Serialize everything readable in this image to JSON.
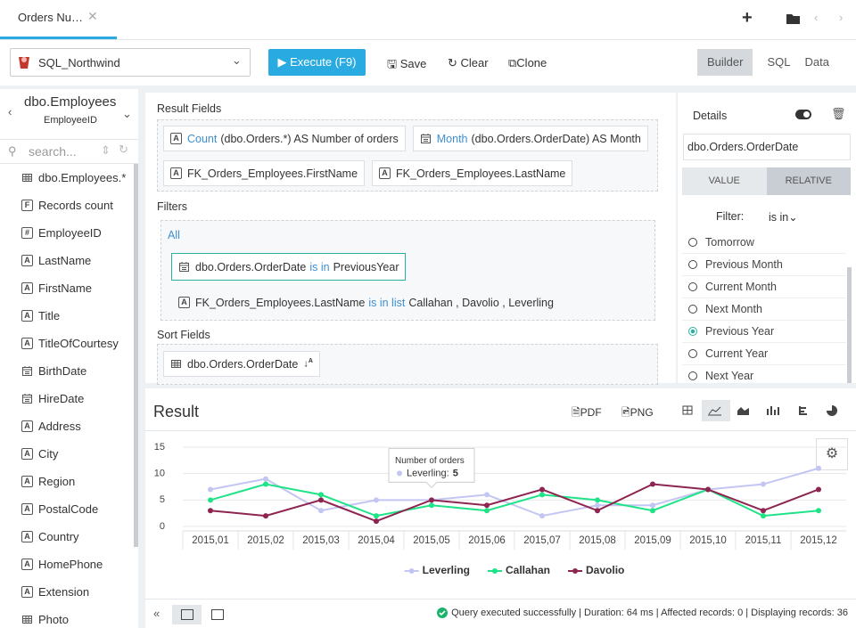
{
  "tab": {
    "title": "Orders Nu…"
  },
  "toolbar": {
    "connection": "SQL_Northwind",
    "execute": "Execute (F9)",
    "save": "Save",
    "clear": "Clear",
    "clone": "Clone",
    "views": [
      "Builder",
      "SQL",
      "Data"
    ]
  },
  "sidebar": {
    "table": "dbo.Employees",
    "key": "EmployeeID",
    "search": "search...",
    "fields": [
      {
        "label": "dbo.Employees.*"
      },
      {
        "icon": "F",
        "label": "Records count"
      },
      {
        "icon": "#",
        "label": "EmployeeID"
      },
      {
        "icon": "A",
        "label": "LastName"
      },
      {
        "icon": "A",
        "label": "FirstName"
      },
      {
        "icon": "A",
        "label": "Title"
      },
      {
        "icon": "A",
        "label": "TitleOfCourtesy"
      },
      {
        "label": "BirthDate"
      },
      {
        "label": "HireDate"
      },
      {
        "icon": "A",
        "label": "Address"
      },
      {
        "icon": "A",
        "label": "City"
      },
      {
        "icon": "A",
        "label": "Region"
      },
      {
        "icon": "A",
        "label": "PostalCode"
      },
      {
        "icon": "A",
        "label": "Country"
      },
      {
        "icon": "A",
        "label": "HomePhone"
      },
      {
        "icon": "A",
        "label": "Extension"
      },
      {
        "label": "Photo"
      }
    ]
  },
  "builder": {
    "result_fields": {
      "title": "Result Fields",
      "items": [
        {
          "icon": "A",
          "func": "Count",
          "text": "(dbo.Orders.*) AS Number of orders"
        },
        {
          "func": "Month",
          "text": "(dbo.Orders.OrderDate) AS Month"
        },
        {
          "icon": "A",
          "text": "FK_Orders_Employees.FirstName"
        },
        {
          "icon": "A",
          "text": "FK_Orders_Employees.LastName"
        }
      ]
    },
    "filters": {
      "title": "Filters",
      "group": "All",
      "items": [
        {
          "field": "dbo.Orders.OrderDate",
          "op": "is in",
          "value": "PreviousYear"
        },
        {
          "icon": "A",
          "field": "FK_Orders_Employees.LastName",
          "op": "is in list",
          "value": "Callahan , Davolio , Leverling"
        }
      ]
    },
    "sort": {
      "title": "Sort Fields",
      "items": [
        {
          "field": "dbo.Orders.OrderDate"
        }
      ]
    }
  },
  "details": {
    "title": "Details",
    "field": "dbo.Orders.OrderDate",
    "tabs": [
      "VALUE",
      "RELATIVE"
    ],
    "filter_label": "Filter:",
    "op": "is in",
    "options": [
      "Tomorrow",
      "Previous Month",
      "Current Month",
      "Next Month",
      "Previous Year",
      "Current Year",
      "Next Year"
    ],
    "selected": 4
  },
  "result": {
    "title": "Result",
    "exports": [
      "PDF",
      "PNG"
    ],
    "status": "Query executed successfully | Duration: 64 ms | Affected records: 0 | Displaying records: 36"
  },
  "chart_data": {
    "type": "line",
    "categories": [
      "2015,01",
      "2015,02",
      "2015,03",
      "2015,04",
      "2015,05",
      "2015,06",
      "2015,07",
      "2015,08",
      "2015,09",
      "2015,10",
      "2015,11",
      "2015,12"
    ],
    "series": [
      {
        "name": "Leverling",
        "color": "#c3c6f2",
        "values": [
          7,
          9,
          3,
          5,
          5,
          6,
          2,
          4,
          4,
          7,
          8,
          11
        ]
      },
      {
        "name": "Callahan",
        "color": "#1ee387",
        "values": [
          5,
          8,
          6,
          2,
          4,
          3,
          6,
          5,
          3,
          7,
          2,
          3
        ]
      },
      {
        "name": "Davolio",
        "color": "#8e2450",
        "values": [
          3,
          2,
          5,
          1,
          5,
          4,
          7,
          3,
          8,
          7,
          3,
          7
        ]
      }
    ],
    "ylim": [
      0,
      15
    ],
    "yticks": [
      0,
      5,
      10,
      15
    ],
    "grid": true,
    "legend": "bottom",
    "tooltip": {
      "title": "Number of orders",
      "label": "Leverling:",
      "series": 0,
      "index": 4
    }
  }
}
